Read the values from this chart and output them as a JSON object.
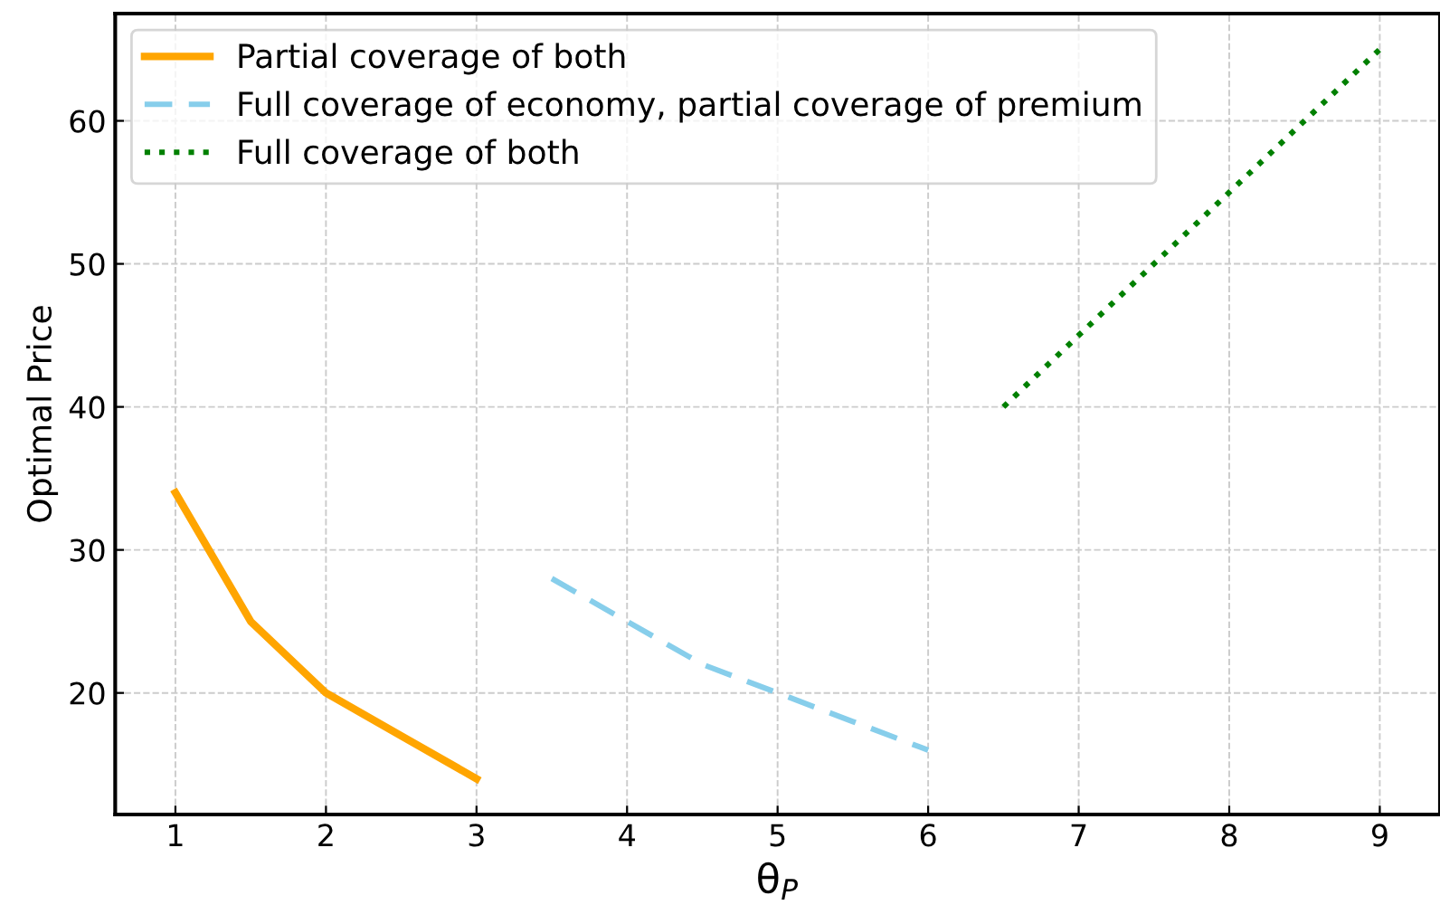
{
  "chart_data": {
    "type": "line",
    "xlabel": "θ$_{P}$",
    "ylabel": "Optimal Price",
    "series": [
      {
        "name": "Partial coverage of both",
        "color": "#ffa500",
        "line_style": "solid",
        "x": [
          1,
          1.5,
          2,
          2.5,
          3
        ],
        "values": [
          34,
          25,
          20,
          17,
          14
        ]
      },
      {
        "name": "Full coverage of economy, partial coverage of premium",
        "color": "#87ceeb",
        "line_style": "dashed",
        "x": [
          3.5,
          4,
          4.5,
          5,
          5.5,
          6
        ],
        "values": [
          28,
          25,
          22,
          20,
          18,
          16
        ]
      },
      {
        "name": "Full coverage of both",
        "color": "#008000",
        "line_style": "dotted",
        "x": [
          6.5,
          7,
          7.5,
          8,
          8.5,
          9
        ],
        "values": [
          40,
          45,
          50,
          55,
          60,
          65
        ]
      }
    ],
    "xlim": [
      0.6,
      9.4
    ],
    "ylim": [
      11.5,
      67.5
    ],
    "xticks": [
      1,
      2,
      3,
      4,
      5,
      6,
      7,
      8,
      9
    ],
    "yticks": [
      20,
      30,
      40,
      50,
      60
    ],
    "grid": true,
    "legend": "top left"
  }
}
